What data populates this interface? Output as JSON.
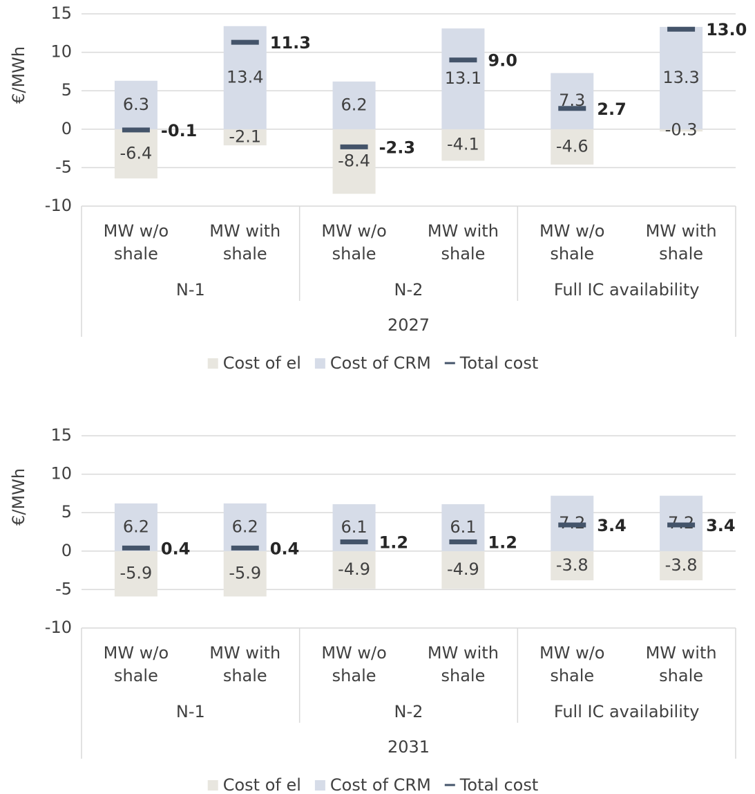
{
  "chart_data": [
    {
      "type": "bar",
      "stacked": true,
      "y_label": "€/MWh",
      "categories": [
        "MW w/o shale",
        "MW with shale",
        "MW w/o shale",
        "MW with shale",
        "MW w/o shale",
        "MW with shale"
      ],
      "groups": [
        "N-1",
        "N-2",
        "Full IC availability"
      ],
      "group_label": "2027",
      "series": [
        {
          "name": "Cost of el",
          "color": "#e8e6df",
          "values": [
            -6.4,
            -2.1,
            -8.4,
            -4.1,
            -4.6,
            -0.3
          ]
        },
        {
          "name": "Cost of CRM",
          "color": "#d6dce8",
          "values": [
            6.3,
            13.4,
            6.2,
            13.1,
            7.3,
            13.3
          ]
        },
        {
          "name": "Total cost",
          "type": "marker",
          "color": "#44546a",
          "values": [
            -0.1,
            11.3,
            -2.3,
            9.0,
            2.7,
            13.0
          ],
          "value_labels": [
            "-0.1",
            "11.3",
            "-2.3",
            "9.0",
            "2.7",
            "13.0"
          ]
        }
      ],
      "ylim": [
        -10,
        15
      ],
      "yticks": [
        -10,
        -5,
        0,
        5,
        10,
        15
      ],
      "grid": true,
      "legend": "bottom"
    },
    {
      "type": "bar",
      "stacked": true,
      "y_label": "€/MWh",
      "categories": [
        "MW w/o shale",
        "MW with shale",
        "MW w/o shale",
        "MW with shale",
        "MW w/o shale",
        "MW with shale"
      ],
      "groups": [
        "N-1",
        "N-2",
        "Full IC availability"
      ],
      "group_label": "2031",
      "series": [
        {
          "name": "Cost of el",
          "color": "#e8e6df",
          "values": [
            -5.9,
            -5.9,
            -4.9,
            -4.9,
            -3.8,
            -3.8
          ]
        },
        {
          "name": "Cost of CRM",
          "color": "#d6dce8",
          "values": [
            6.2,
            6.2,
            6.1,
            6.1,
            7.2,
            7.2
          ]
        },
        {
          "name": "Total cost",
          "type": "marker",
          "color": "#44546a",
          "values": [
            0.4,
            0.4,
            1.2,
            1.2,
            3.4,
            3.4
          ]
        }
      ],
      "ylim": [
        -10,
        15
      ],
      "yticks": [
        -10,
        -5,
        0,
        5,
        10,
        15
      ],
      "grid": true,
      "legend": "bottom"
    }
  ]
}
